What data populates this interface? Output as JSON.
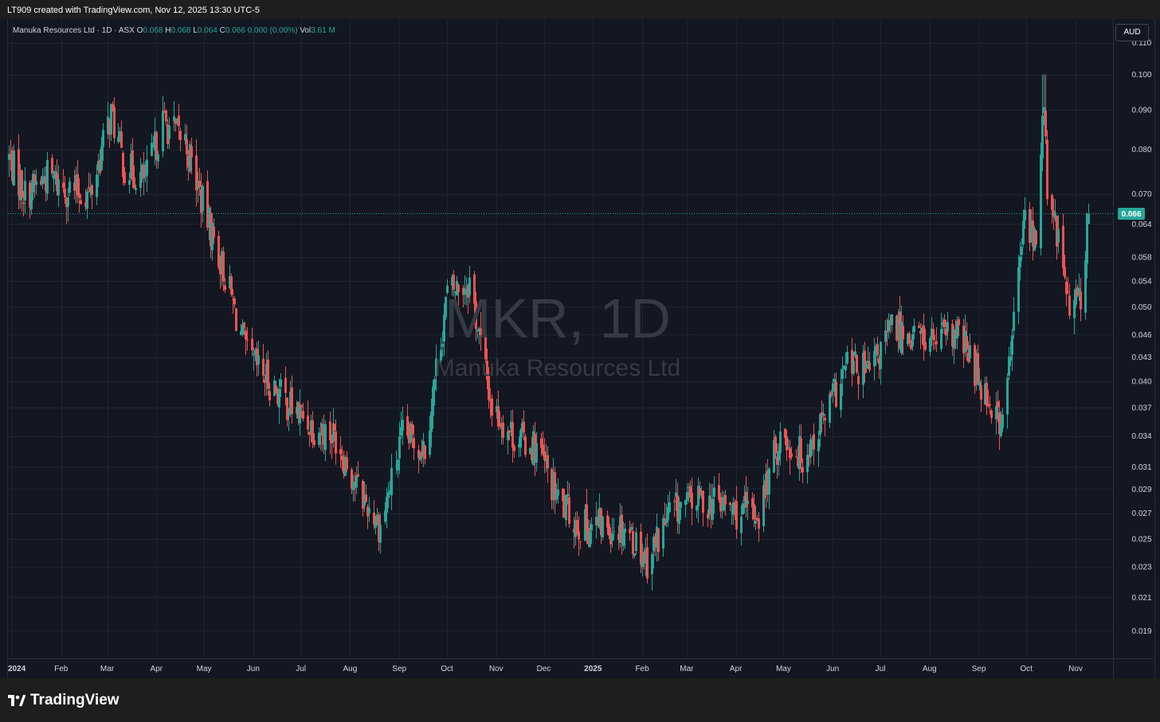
{
  "header": {
    "attribution": "LT909 created with TradingView.com, Nov 12, 2025 13:30 UTC-5"
  },
  "legend": {
    "symbol_line": "Manuka Resources Ltd · 1D · ASX",
    "o_label": "O",
    "o_value": "0.068",
    "h_label": "H",
    "h_value": "0.068",
    "l_label": "L",
    "l_value": "0.064",
    "c_label": "C",
    "c_value": "0.066",
    "change": "0.000 (0.00%)",
    "vol_label": "Vol",
    "vol_value": "3.61 M"
  },
  "watermark": {
    "symbol": "MKR, 1D",
    "name": "Manuka Resources Ltd"
  },
  "currency_button": "AUD",
  "footer": {
    "brand": "TradingView"
  },
  "colors": {
    "up": "#26a69a",
    "down": "#ef5350",
    "background": "#131722",
    "grid": "#1f2430",
    "axis_text": "#d1d4dc"
  },
  "chart_data": {
    "type": "candlestick",
    "interval": "1D",
    "price_axis": {
      "scale": "log",
      "ticks": [
        "0.110",
        "0.100",
        "0.090",
        "0.080",
        "0.070",
        "0.064",
        "0.058",
        "0.054",
        "0.050",
        "0.046",
        "0.043",
        "0.040",
        "0.037",
        "0.034",
        "0.031",
        "0.029",
        "0.027",
        "0.025",
        "0.023",
        "0.021",
        "0.019"
      ],
      "range": [
        0.0175,
        0.118
      ]
    },
    "time_axis": {
      "labels": [
        "2024",
        "Feb",
        "Mar",
        "Apr",
        "May",
        "Jun",
        "Jul",
        "Aug",
        "Sep",
        "Oct",
        "Nov",
        "Dec",
        "2025",
        "Feb",
        "Mar",
        "Apr",
        "May",
        "Jun",
        "Jul",
        "Aug",
        "Sep",
        "Oct",
        "Nov"
      ],
      "bold_labels": [
        "2024",
        "2025"
      ]
    },
    "last_price": {
      "label": "0.066",
      "value": 0.066,
      "color": "#26a69a"
    },
    "approx_close_path": [
      {
        "date": "2024-01-02",
        "close": 0.078
      },
      {
        "date": "2024-01-12",
        "close": 0.07
      },
      {
        "date": "2024-01-26",
        "close": 0.074
      },
      {
        "date": "2024-02-08",
        "close": 0.071
      },
      {
        "date": "2024-02-22",
        "close": 0.07
      },
      {
        "date": "2024-03-06",
        "close": 0.089
      },
      {
        "date": "2024-03-15",
        "close": 0.076
      },
      {
        "date": "2024-03-28",
        "close": 0.073
      },
      {
        "date": "2024-04-08",
        "close": 0.087
      },
      {
        "date": "2024-04-22",
        "close": 0.082
      },
      {
        "date": "2024-05-03",
        "close": 0.068
      },
      {
        "date": "2024-05-17",
        "close": 0.055
      },
      {
        "date": "2024-05-31",
        "close": 0.043
      },
      {
        "date": "2024-06-14",
        "close": 0.04
      },
      {
        "date": "2024-06-28",
        "close": 0.037
      },
      {
        "date": "2024-07-12",
        "close": 0.035
      },
      {
        "date": "2024-07-26",
        "close": 0.034
      },
      {
        "date": "2024-08-09",
        "close": 0.029
      },
      {
        "date": "2024-08-23",
        "close": 0.026
      },
      {
        "date": "2024-09-06",
        "close": 0.034
      },
      {
        "date": "2024-09-20",
        "close": 0.033
      },
      {
        "date": "2024-10-04",
        "close": 0.052
      },
      {
        "date": "2024-10-18",
        "close": 0.054
      },
      {
        "date": "2024-11-01",
        "close": 0.037
      },
      {
        "date": "2024-11-15",
        "close": 0.034
      },
      {
        "date": "2024-11-29",
        "close": 0.033
      },
      {
        "date": "2024-12-13",
        "close": 0.028
      },
      {
        "date": "2024-12-27",
        "close": 0.026
      },
      {
        "date": "2025-01-10",
        "close": 0.026
      },
      {
        "date": "2025-01-24",
        "close": 0.026
      },
      {
        "date": "2025-02-07",
        "close": 0.0235
      },
      {
        "date": "2025-02-21",
        "close": 0.027
      },
      {
        "date": "2025-03-07",
        "close": 0.028
      },
      {
        "date": "2025-03-21",
        "close": 0.028
      },
      {
        "date": "2025-04-04",
        "close": 0.027
      },
      {
        "date": "2025-04-18",
        "close": 0.027
      },
      {
        "date": "2025-05-02",
        "close": 0.034
      },
      {
        "date": "2025-05-16",
        "close": 0.032
      },
      {
        "date": "2025-05-30",
        "close": 0.036
      },
      {
        "date": "2025-06-13",
        "close": 0.042
      },
      {
        "date": "2025-06-27",
        "close": 0.041
      },
      {
        "date": "2025-07-11",
        "close": 0.047
      },
      {
        "date": "2025-07-25",
        "close": 0.046
      },
      {
        "date": "2025-08-08",
        "close": 0.045
      },
      {
        "date": "2025-08-22",
        "close": 0.046
      },
      {
        "date": "2025-09-05",
        "close": 0.04
      },
      {
        "date": "2025-09-19",
        "close": 0.035
      },
      {
        "date": "2025-09-26",
        "close": 0.048
      },
      {
        "date": "2025-10-03",
        "close": 0.066
      },
      {
        "date": "2025-10-10",
        "close": 0.06
      },
      {
        "date": "2025-10-15",
        "close": 0.095
      },
      {
        "date": "2025-10-17",
        "close": 0.068
      },
      {
        "date": "2025-10-24",
        "close": 0.062
      },
      {
        "date": "2025-10-31",
        "close": 0.049
      },
      {
        "date": "2025-11-07",
        "close": 0.052
      },
      {
        "date": "2025-11-12",
        "close": 0.066
      }
    ]
  }
}
